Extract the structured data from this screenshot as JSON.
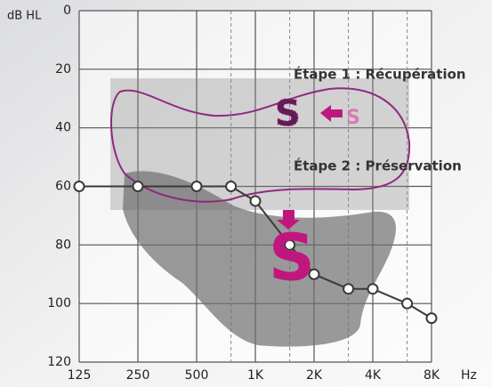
{
  "chart_data": {
    "type": "line",
    "y_label": "dB HL",
    "x_label": "Hz",
    "x": [
      125,
      250,
      500,
      750,
      1000,
      1500,
      2000,
      3000,
      4000,
      6000,
      8000
    ],
    "series": [
      {
        "color": "#3a3a3a",
        "values": [
          60,
          60,
          60,
          60,
          65,
          80,
          90,
          95,
          95,
          100,
          105
        ]
      }
    ],
    "xlim": [
      125,
      8000
    ],
    "x_log": true,
    "xticks": [
      125,
      250,
      500,
      {
        "value": 1000,
        "label": "1K"
      },
      {
        "value": 2000,
        "label": "2K"
      },
      {
        "value": 4000,
        "label": "4K"
      },
      {
        "value": 8000,
        "label": "8K"
      }
    ],
    "xminorticks": [
      750,
      1500,
      3000,
      6000
    ],
    "ylim": [
      120,
      0
    ],
    "yticks": [
      0,
      20,
      40,
      60,
      80,
      100,
      120
    ],
    "grid": true,
    "annotations": [
      "Étape 1 : Récupération",
      "Étape 2 : Préservation",
      "S",
      "S",
      "S"
    ]
  }
}
